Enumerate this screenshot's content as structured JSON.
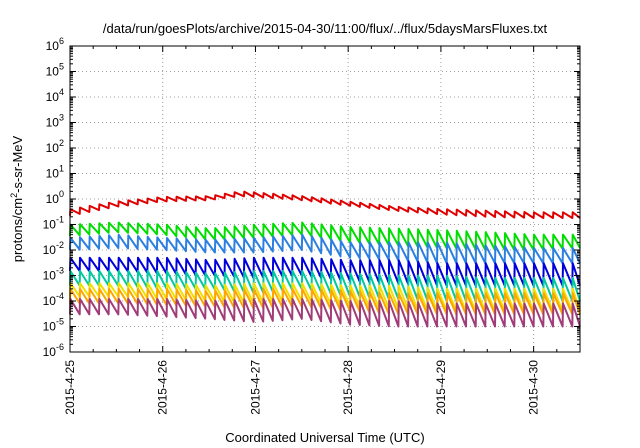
{
  "chart_data": {
    "type": "line",
    "title": "/data/run/goesPlots/archive/2015-04-30/11:00/flux/../flux/5daysMarsFluxes.txt",
    "xlabel": "Coordinated Universal Time (UTC)",
    "ylabel": "protons/cm2-s-sr-MeV",
    "ylabel_parts": [
      "protons/cm",
      "2",
      "-s-sr-MeV"
    ],
    "y_scale": "log",
    "ylim": [
      1e-06,
      1000000.0
    ],
    "xlim": [
      "2015-04-25 00:00",
      "2015-04-30 12:00"
    ],
    "grid": true,
    "x_ticks": [
      "2015-4-25",
      "2015-4-26",
      "2015-4-27",
      "2015-4-28",
      "2015-4-29",
      "2015-4-30"
    ],
    "y_tick_exponents": [
      -6,
      -5,
      -4,
      -3,
      -2,
      -1,
      0,
      1,
      2,
      3,
      4,
      5,
      6
    ],
    "sawtooth_period_hours": 2.5,
    "series": [
      {
        "color": "#e00000",
        "x": [
          "2015-04-25 00:00",
          "2015-04-25 12:00",
          "2015-04-26 00:00",
          "2015-04-26 12:00",
          "2015-04-26 20:00",
          "2015-04-27 00:00",
          "2015-04-27 12:00",
          "2015-04-28 00:00",
          "2015-04-28 12:00",
          "2015-04-29 00:00",
          "2015-04-29 12:00",
          "2015-04-30 00:00",
          "2015-04-30 12:00"
        ],
        "peak": [
          0.4,
          0.8,
          1.2,
          1.3,
          2.0,
          1.8,
          1.3,
          0.8,
          0.5,
          0.4,
          0.35,
          0.3,
          0.3
        ],
        "trough": [
          0.22,
          0.5,
          0.8,
          0.9,
          1.3,
          1.2,
          0.9,
          0.55,
          0.35,
          0.25,
          0.2,
          0.18,
          0.18
        ]
      },
      {
        "color": "#00dd00",
        "x": [
          "2015-04-25 00:00",
          "2015-04-25 12:00",
          "2015-04-26 00:00",
          "2015-04-26 12:00",
          "2015-04-27 00:00",
          "2015-04-27 12:00",
          "2015-04-28 00:00",
          "2015-04-28 12:00",
          "2015-04-29 00:00",
          "2015-04-29 12:00",
          "2015-04-30 00:00",
          "2015-04-30 12:00"
        ],
        "peak": [
          0.1,
          0.12,
          0.1,
          0.07,
          0.1,
          0.12,
          0.08,
          0.07,
          0.06,
          0.05,
          0.04,
          0.04
        ],
        "trough": [
          0.035,
          0.05,
          0.04,
          0.025,
          0.03,
          0.04,
          0.02,
          0.015,
          0.012,
          0.01,
          0.01,
          0.012
        ]
      },
      {
        "color": "#2b7fe0",
        "x": [
          "2015-04-25 00:00",
          "2015-04-25 12:00",
          "2015-04-26 00:00",
          "2015-04-26 12:00",
          "2015-04-27 00:00",
          "2015-04-27 12:00",
          "2015-04-28 00:00",
          "2015-04-28 12:00",
          "2015-04-29 00:00",
          "2015-04-29 12:00",
          "2015-04-30 00:00",
          "2015-04-30 12:00"
        ],
        "peak": [
          0.03,
          0.04,
          0.03,
          0.025,
          0.03,
          0.04,
          0.02,
          0.02,
          0.02,
          0.015,
          0.012,
          0.012
        ],
        "trough": [
          0.01,
          0.012,
          0.01,
          0.008,
          0.008,
          0.01,
          0.005,
          0.004,
          0.003,
          0.003,
          0.003,
          0.003
        ]
      },
      {
        "color": "#0000dd",
        "x": [
          "2015-04-25 00:00",
          "2015-04-25 12:00",
          "2015-04-26 00:00",
          "2015-04-26 12:00",
          "2015-04-27 00:00",
          "2015-04-27 12:00",
          "2015-04-28 00:00",
          "2015-04-28 12:00",
          "2015-04-29 00:00",
          "2015-04-29 12:00",
          "2015-04-30 00:00",
          "2015-04-30 12:00"
        ],
        "peak": [
          0.005,
          0.005,
          0.005,
          0.004,
          0.005,
          0.005,
          0.004,
          0.004,
          0.003,
          0.003,
          0.003,
          0.003
        ],
        "trough": [
          0.0015,
          0.0015,
          0.0012,
          0.001,
          0.0008,
          0.001,
          0.0006,
          0.0005,
          0.0004,
          0.0004,
          0.0004,
          0.0004
        ]
      },
      {
        "color": "#00c8a0",
        "x": [
          "2015-04-25 00:00",
          "2015-04-25 12:00",
          "2015-04-26 00:00",
          "2015-04-26 12:00",
          "2015-04-27 00:00",
          "2015-04-27 12:00",
          "2015-04-28 00:00",
          "2015-04-28 12:00",
          "2015-04-29 00:00",
          "2015-04-29 12:00",
          "2015-04-30 00:00",
          "2015-04-30 12:00"
        ],
        "peak": [
          0.0015,
          0.0015,
          0.0015,
          0.0012,
          0.0015,
          0.0015,
          0.0012,
          0.001,
          0.001,
          0.0008,
          0.0008,
          0.0008
        ],
        "trough": [
          0.0004,
          0.0004,
          0.0003,
          0.0003,
          0.0002,
          0.0003,
          0.00015,
          0.00012,
          0.0001,
          0.0001,
          0.0001,
          0.0001
        ]
      },
      {
        "color": "#f0e000",
        "x": [
          "2015-04-25 00:00",
          "2015-04-25 12:00",
          "2015-04-26 00:00",
          "2015-04-26 12:00",
          "2015-04-27 00:00",
          "2015-04-27 12:00",
          "2015-04-28 00:00",
          "2015-04-28 12:00",
          "2015-04-29 00:00",
          "2015-04-29 12:00",
          "2015-04-30 00:00",
          "2015-04-30 12:00"
        ],
        "peak": [
          0.0005,
          0.0005,
          0.0005,
          0.0004,
          0.0005,
          0.0005,
          0.0004,
          0.0004,
          0.0003,
          0.0003,
          0.0003,
          0.0003
        ],
        "trough": [
          0.00015,
          0.00015,
          0.00012,
          0.0001,
          8e-05,
          0.0001,
          6e-05,
          5e-05,
          4e-05,
          4e-05,
          4e-05,
          4e-05
        ]
      },
      {
        "color": "#ffa500",
        "x": [
          "2015-04-25 00:00",
          "2015-04-25 12:00",
          "2015-04-26 00:00",
          "2015-04-26 12:00",
          "2015-04-27 00:00",
          "2015-04-27 12:00",
          "2015-04-28 00:00",
          "2015-04-28 12:00",
          "2015-04-29 00:00",
          "2015-04-29 12:00",
          "2015-04-30 00:00",
          "2015-04-30 12:00"
        ],
        "peak": [
          0.0003,
          0.0003,
          0.0003,
          0.00025,
          0.0003,
          0.0003,
          0.00025,
          0.0002,
          0.0002,
          0.0002,
          0.0002,
          0.0002
        ],
        "trough": [
          8e-05,
          8e-05,
          7e-05,
          6e-05,
          5e-05,
          6e-05,
          4e-05,
          3e-05,
          3e-05,
          3e-05,
          3e-05,
          3e-05
        ]
      },
      {
        "color": "#a03c78",
        "x": [
          "2015-04-25 00:00",
          "2015-04-25 12:00",
          "2015-04-26 00:00",
          "2015-04-26 12:00",
          "2015-04-27 00:00",
          "2015-04-27 12:00",
          "2015-04-28 00:00",
          "2015-04-28 12:00",
          "2015-04-29 00:00",
          "2015-04-29 12:00",
          "2015-04-30 00:00",
          "2015-04-30 12:00"
        ],
        "peak": [
          0.00012,
          0.00012,
          0.00012,
          0.0001,
          0.00012,
          0.00012,
          0.0001,
          0.0001,
          8e-05,
          8e-05,
          8e-05,
          8e-05
        ],
        "trough": [
          3e-05,
          3e-05,
          2.5e-05,
          2e-05,
          1.5e-05,
          2e-05,
          1.2e-05,
          1e-05,
          1e-05,
          1e-05,
          1e-05,
          1e-05
        ]
      }
    ]
  }
}
